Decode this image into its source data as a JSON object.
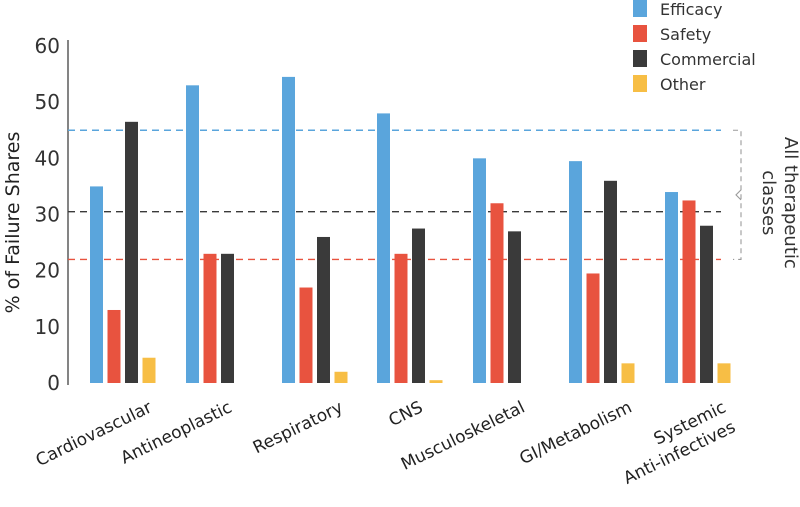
{
  "chart_data": {
    "type": "bar",
    "ylabel": "% of Failure Shares",
    "ylim": [
      0,
      60
    ],
    "yticks": [
      "0",
      "10",
      "20",
      "30",
      "40",
      "50",
      "60"
    ],
    "categories": [
      [
        "Cardiovascular"
      ],
      [
        "Antineoplastic"
      ],
      [
        "Respiratory"
      ],
      [
        "CNS"
      ],
      [
        "Musculoskeletal"
      ],
      [
        "GI/Metabolism"
      ],
      [
        "Systemic",
        "Anti-infectives"
      ]
    ],
    "series": [
      {
        "name": "Efficacy",
        "color": "#5AA5DC",
        "values": [
          35,
          53,
          54.5,
          48,
          40,
          39.5,
          34
        ]
      },
      {
        "name": "Safety",
        "color": "#E8533F",
        "values": [
          13,
          23,
          17,
          23,
          32,
          19.5,
          32.5
        ]
      },
      {
        "name": "Commercial",
        "color": "#3A3A3A",
        "values": [
          46.5,
          23,
          26,
          27.5,
          27,
          36,
          28
        ]
      },
      {
        "name": "Other",
        "color": "#F7BE45",
        "values": [
          4.5,
          0,
          2,
          0.5,
          0,
          3.5,
          3.5
        ]
      }
    ],
    "reference_lines": [
      {
        "series": "Efficacy",
        "value": 45,
        "color": "#5AA5DC",
        "style": "dashed"
      },
      {
        "series": "Commercial",
        "value": 30.5,
        "color": "#3A3A3A",
        "style": "dashed"
      },
      {
        "series": "Safety",
        "value": 22,
        "color": "#E8533F",
        "style": "dashed"
      }
    ],
    "annotation": {
      "lines": [
        "All therapeutic",
        "classes"
      ]
    },
    "legend_position": "top-right",
    "grid": false
  }
}
